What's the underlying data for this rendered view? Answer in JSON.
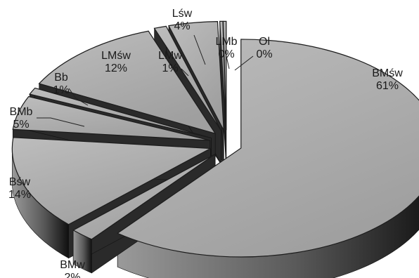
{
  "chart_data": {
    "type": "pie",
    "style": "3d-exploded-grayscale",
    "title": "",
    "legend": "none",
    "unit": "%",
    "slices": [
      {
        "label": "BMśw",
        "value": 61,
        "value_label": "61%"
      },
      {
        "label": "BMw",
        "value": 2,
        "value_label": "2%"
      },
      {
        "label": "Bśw",
        "value": 14,
        "value_label": "14%"
      },
      {
        "label": "BMb",
        "value": 5,
        "value_label": "5%"
      },
      {
        "label": "Bb",
        "value": 1,
        "value_label": "1%"
      },
      {
        "label": "LMśw",
        "value": 12,
        "value_label": "12%"
      },
      {
        "label": "LMw",
        "value": 1,
        "value_label": "1%"
      },
      {
        "label": "Lśw",
        "value": 4,
        "value_label": "4%"
      },
      {
        "label": "LMb",
        "value": 0,
        "value_label": "0%"
      },
      {
        "label": "Ol",
        "value": 0,
        "value_label": "0%"
      }
    ],
    "colors": {
      "top": "#a9a9a9",
      "side_light": "#8c8c8c",
      "side_dark": "#151515",
      "edge": "#1c1c1c"
    }
  }
}
